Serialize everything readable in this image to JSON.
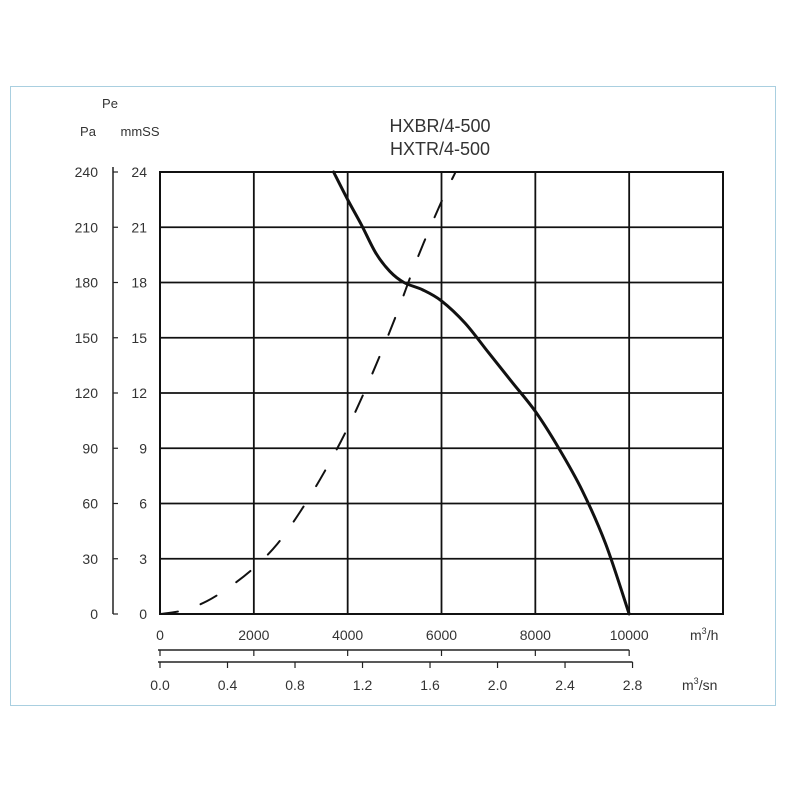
{
  "chart_data": {
    "type": "line",
    "title_lines": [
      "HXBR/4-500",
      "HXTR/4-500"
    ],
    "x_primary": {
      "unit_label": "m³/h",
      "unit_base": "m",
      "unit_sup": "3",
      "unit_tail": "/h",
      "range": [
        0,
        12000
      ],
      "ticks": [
        0,
        2000,
        4000,
        6000,
        8000,
        10000
      ],
      "tick_labels": [
        "0",
        "2000",
        "4000",
        "6000",
        "8000",
        "10000"
      ]
    },
    "x_secondary": {
      "unit_label": "m³/sn",
      "unit_base": "m",
      "unit_sup": "3",
      "unit_tail": "/sn",
      "ticks": [
        0.0,
        0.4,
        0.8,
        1.2,
        1.6,
        2.0,
        2.4,
        2.8
      ],
      "tick_labels": [
        "0.0",
        "0.4",
        "0.8",
        "1.2",
        "1.6",
        "2.0",
        "2.4",
        "2.8"
      ]
    },
    "y_primary": {
      "label": "Pa",
      "range": [
        0,
        240
      ],
      "ticks": [
        0,
        30,
        60,
        90,
        120,
        150,
        180,
        210,
        240
      ],
      "tick_labels": [
        "0",
        "30",
        "60",
        "90",
        "120",
        "150",
        "180",
        "210",
        "240"
      ]
    },
    "y_secondary": {
      "label": "mmSS",
      "group_label": "Pe",
      "ticks": [
        0,
        3,
        6,
        9,
        12,
        15,
        18,
        21,
        24
      ],
      "tick_labels": [
        "0",
        "3",
        "6",
        "9",
        "12",
        "15",
        "18",
        "21",
        "24"
      ]
    },
    "grid": true,
    "series": [
      {
        "style": "solid",
        "color": "#111111",
        "x": [
          3700,
          4000,
          4300,
          4600,
          4900,
          5200,
          5600,
          6000,
          6500,
          7000,
          7500,
          8000,
          8500,
          9000,
          9500,
          10000
        ],
        "y": [
          240,
          225,
          211,
          196,
          186,
          180,
          176,
          170,
          158,
          142,
          126,
          110,
          90,
          67,
          38,
          0
        ]
      },
      {
        "style": "dashed",
        "color": "#111111",
        "x": [
          0,
          500,
          1000,
          1500,
          2000,
          2500,
          3000,
          3500,
          4000,
          4500,
          5000,
          5500,
          6000,
          6300
        ],
        "y": [
          0,
          2,
          7,
          15,
          25,
          38,
          56,
          77,
          101,
          129,
          160,
          194,
          224,
          240
        ]
      }
    ]
  }
}
